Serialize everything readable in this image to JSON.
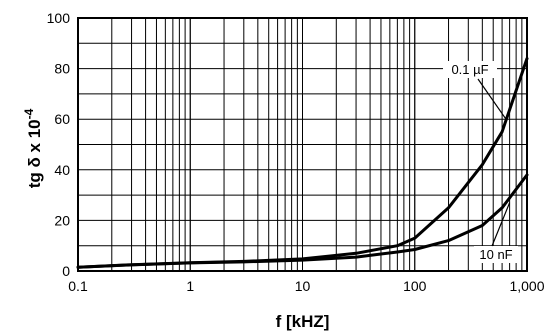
{
  "chart_data": {
    "type": "line",
    "title": "",
    "xlabel": "f [kHZ]",
    "ylabel": "tg δ x 10",
    "ylabel_superscript": "-4",
    "x_scale": "log",
    "xlim": [
      0.1,
      1000
    ],
    "ylim": [
      0,
      100
    ],
    "grid": true,
    "x_ticks": [
      {
        "value": 0.1,
        "label": "0.1"
      },
      {
        "value": 1,
        "label": "1"
      },
      {
        "value": 10,
        "label": "10"
      },
      {
        "value": 100,
        "label": "100"
      },
      {
        "value": 1000,
        "label": "1,000"
      }
    ],
    "y_ticks": [
      {
        "value": 0,
        "label": "0"
      },
      {
        "value": 20,
        "label": "20"
      },
      {
        "value": 40,
        "label": "40"
      },
      {
        "value": 60,
        "label": "60"
      },
      {
        "value": 80,
        "label": "80"
      },
      {
        "value": 100,
        "label": "100"
      }
    ],
    "series": [
      {
        "name": "0.1 µF",
        "x": [
          0.1,
          0.3,
          1,
          3,
          10,
          30,
          70,
          100,
          200,
          400,
          600,
          1000
        ],
        "values": [
          1.5,
          2.5,
          3.3,
          3.8,
          4.8,
          7,
          10,
          13,
          25,
          42,
          55,
          84
        ]
      },
      {
        "name": "10 nF",
        "x": [
          0.1,
          0.3,
          1,
          3,
          10,
          30,
          70,
          100,
          200,
          400,
          600,
          1000
        ],
        "values": [
          1.5,
          2.4,
          3.2,
          3.6,
          4.3,
          5.5,
          7.5,
          8.5,
          12,
          18,
          25,
          38
        ]
      }
    ],
    "annotations": [
      {
        "text": "0.1 µF",
        "series": 0
      },
      {
        "text": "10 nF",
        "series": 1
      }
    ]
  }
}
